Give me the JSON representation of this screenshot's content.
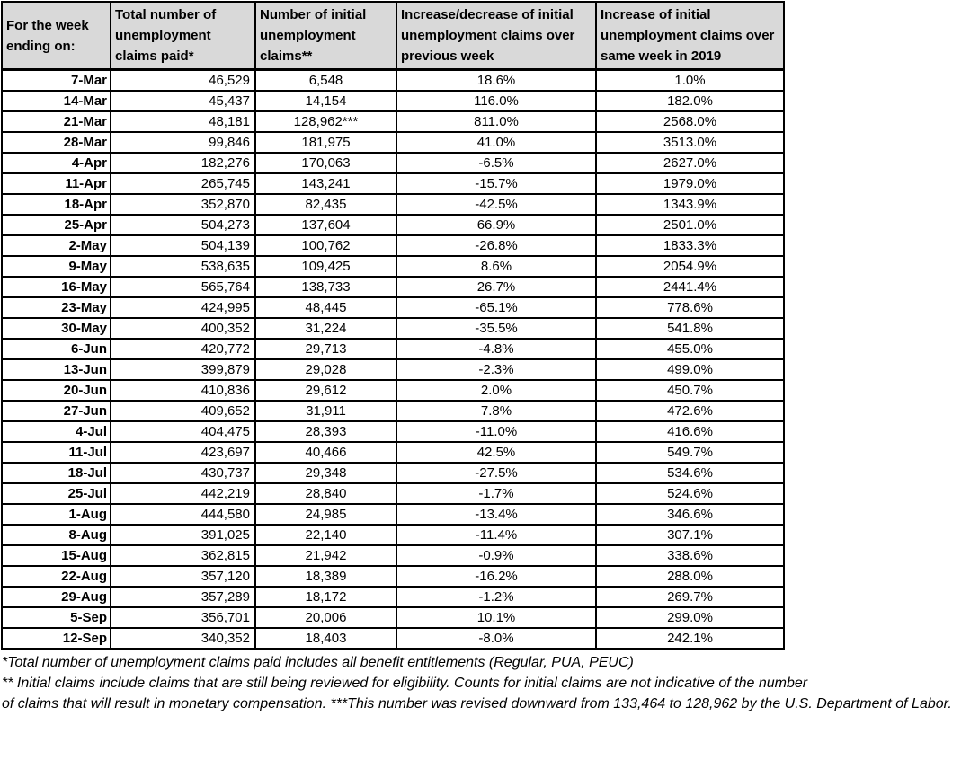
{
  "colors": {
    "header_bg": "#d9d9d9",
    "border": "#000000",
    "background": "#ffffff"
  },
  "table": {
    "columns": [
      "For the week ending on:",
      "Total number of unemployment claims paid*",
      "Number of initial unemployment claims**",
      "Increase/decrease of initial unemployment claims over previous week",
      "Increase of initial unemployment claims over same week in 2019"
    ],
    "rows": [
      {
        "date": "7-Mar",
        "paid": "46,529",
        "initial": "6,548",
        "wow": "18.6%",
        "vs2019": "1.0%"
      },
      {
        "date": "14-Mar",
        "paid": "45,437",
        "initial": "14,154",
        "wow": "116.0%",
        "vs2019": "182.0%"
      },
      {
        "date": "21-Mar",
        "paid": "48,181",
        "initial": "128,962***",
        "wow": "811.0%",
        "vs2019": "2568.0%"
      },
      {
        "date": "28-Mar",
        "paid": "99,846",
        "initial": "181,975",
        "wow": "41.0%",
        "vs2019": "3513.0%"
      },
      {
        "date": "4-Apr",
        "paid": "182,276",
        "initial": "170,063",
        "wow": "-6.5%",
        "vs2019": "2627.0%"
      },
      {
        "date": "11-Apr",
        "paid": "265,745",
        "initial": "143,241",
        "wow": "-15.7%",
        "vs2019": "1979.0%"
      },
      {
        "date": "18-Apr",
        "paid": "352,870",
        "initial": "82,435",
        "wow": "-42.5%",
        "vs2019": "1343.9%"
      },
      {
        "date": "25-Apr",
        "paid": "504,273",
        "initial": "137,604",
        "wow": "66.9%",
        "vs2019": "2501.0%"
      },
      {
        "date": "2-May",
        "paid": "504,139",
        "initial": "100,762",
        "wow": "-26.8%",
        "vs2019": "1833.3%"
      },
      {
        "date": "9-May",
        "paid": "538,635",
        "initial": "109,425",
        "wow": "8.6%",
        "vs2019": "2054.9%"
      },
      {
        "date": "16-May",
        "paid": "565,764",
        "initial": "138,733",
        "wow": "26.7%",
        "vs2019": "2441.4%"
      },
      {
        "date": "23-May",
        "paid": "424,995",
        "initial": "48,445",
        "wow": "-65.1%",
        "vs2019": "778.6%"
      },
      {
        "date": "30-May",
        "paid": "400,352",
        "initial": "31,224",
        "wow": "-35.5%",
        "vs2019": "541.8%"
      },
      {
        "date": "6-Jun",
        "paid": "420,772",
        "initial": "29,713",
        "wow": "-4.8%",
        "vs2019": "455.0%"
      },
      {
        "date": "13-Jun",
        "paid": "399,879",
        "initial": "29,028",
        "wow": "-2.3%",
        "vs2019": "499.0%"
      },
      {
        "date": "20-Jun",
        "paid": "410,836",
        "initial": "29,612",
        "wow": "2.0%",
        "vs2019": "450.7%"
      },
      {
        "date": "27-Jun",
        "paid": "409,652",
        "initial": "31,911",
        "wow": "7.8%",
        "vs2019": "472.6%"
      },
      {
        "date": "4-Jul",
        "paid": "404,475",
        "initial": "28,393",
        "wow": "-11.0%",
        "vs2019": "416.6%"
      },
      {
        "date": "11-Jul",
        "paid": "423,697",
        "initial": "40,466",
        "wow": "42.5%",
        "vs2019": "549.7%"
      },
      {
        "date": "18-Jul",
        "paid": "430,737",
        "initial": "29,348",
        "wow": "-27.5%",
        "vs2019": "534.6%"
      },
      {
        "date": "25-Jul",
        "paid": "442,219",
        "initial": "28,840",
        "wow": "-1.7%",
        "vs2019": "524.6%"
      },
      {
        "date": "1-Aug",
        "paid": "444,580",
        "initial": "24,985",
        "wow": "-13.4%",
        "vs2019": "346.6%"
      },
      {
        "date": "8-Aug",
        "paid": "391,025",
        "initial": "22,140",
        "wow": "-11.4%",
        "vs2019": "307.1%"
      },
      {
        "date": "15-Aug",
        "paid": "362,815",
        "initial": "21,942",
        "wow": "-0.9%",
        "vs2019": "338.6%"
      },
      {
        "date": "22-Aug",
        "paid": "357,120",
        "initial": "18,389",
        "wow": "-16.2%",
        "vs2019": "288.0%"
      },
      {
        "date": "29-Aug",
        "paid": "357,289",
        "initial": "18,172",
        "wow": "-1.2%",
        "vs2019": "269.7%"
      },
      {
        "date": "5-Sep",
        "paid": "356,701",
        "initial": "20,006",
        "wow": "10.1%",
        "vs2019": "299.0%"
      },
      {
        "date": "12-Sep",
        "paid": "340,352",
        "initial": "18,403",
        "wow": "-8.0%",
        "vs2019": "242.1%"
      }
    ]
  },
  "footnotes": [
    "*Total number of unemployment claims paid includes all benefit entitlements (Regular, PUA, PEUC)",
    "** Initial claims include claims that are still being reviewed for eligibility. Counts for initial claims are not indicative of the number",
    "of claims that will result in monetary compensation. ***This number was revised downward from 133,464 to 128,962 by the U.S. Department of Labor."
  ]
}
